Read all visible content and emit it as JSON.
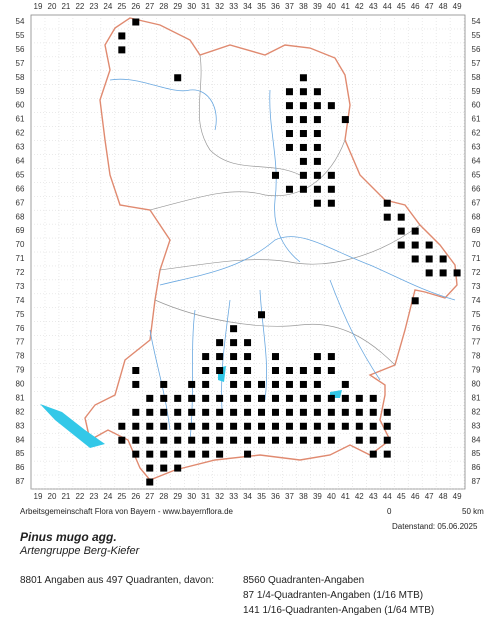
{
  "map": {
    "x_labels": [
      19,
      20,
      21,
      22,
      23,
      24,
      25,
      26,
      27,
      28,
      29,
      30,
      31,
      32,
      33,
      34,
      35,
      36,
      37,
      38,
      39,
      40,
      41,
      42,
      43,
      44,
      45,
      46,
      47,
      48,
      49
    ],
    "y_labels": [
      54,
      55,
      56,
      57,
      58,
      59,
      60,
      61,
      62,
      63,
      64,
      65,
      66,
      67,
      68,
      69,
      70,
      71,
      72,
      73,
      74,
      75,
      76,
      77,
      78,
      79,
      80,
      81,
      82,
      83,
      84,
      85,
      86,
      87
    ],
    "occurrences": [
      {
        "row": 54,
        "cols": [
          26
        ]
      },
      {
        "row": 55,
        "cols": [
          25
        ]
      },
      {
        "row": 56,
        "cols": [
          25
        ]
      },
      {
        "row": 58,
        "cols": [
          29,
          38
        ]
      },
      {
        "row": 59,
        "cols": [
          37,
          38,
          39
        ]
      },
      {
        "row": 60,
        "cols": [
          37,
          38,
          39,
          40
        ]
      },
      {
        "row": 61,
        "cols": [
          37,
          38,
          39,
          41
        ]
      },
      {
        "row": 62,
        "cols": [
          37,
          38,
          39
        ]
      },
      {
        "row": 63,
        "cols": [
          37,
          38,
          39
        ]
      },
      {
        "row": 64,
        "cols": [
          38,
          39
        ]
      },
      {
        "row": 65,
        "cols": [
          36,
          38,
          39,
          40
        ]
      },
      {
        "row": 66,
        "cols": [
          37,
          38,
          39,
          40
        ]
      },
      {
        "row": 67,
        "cols": [
          39,
          40,
          44
        ]
      },
      {
        "row": 68,
        "cols": [
          44,
          45
        ]
      },
      {
        "row": 69,
        "cols": [
          45,
          46
        ]
      },
      {
        "row": 70,
        "cols": [
          45,
          46,
          47
        ]
      },
      {
        "row": 71,
        "cols": [
          46,
          47,
          48
        ]
      },
      {
        "row": 72,
        "cols": [
          47,
          48,
          49
        ]
      },
      {
        "row": 74,
        "cols": [
          46
        ]
      },
      {
        "row": 75,
        "cols": [
          35
        ]
      },
      {
        "row": 76,
        "cols": [
          33
        ]
      },
      {
        "row": 77,
        "cols": [
          32,
          33,
          34
        ]
      },
      {
        "row": 78,
        "cols": [
          31,
          32,
          33,
          34,
          36,
          39,
          40
        ]
      },
      {
        "row": 79,
        "cols": [
          26,
          31,
          32,
          33,
          34,
          36,
          37,
          38,
          39,
          40
        ]
      },
      {
        "row": 80,
        "cols": [
          26,
          28,
          30,
          31,
          33,
          34,
          35,
          36,
          37,
          38,
          39,
          41
        ]
      },
      {
        "row": 81,
        "cols": [
          27,
          28,
          29,
          30,
          31,
          32,
          33,
          34,
          35,
          36,
          37,
          38,
          39,
          40,
          41,
          42,
          43
        ]
      },
      {
        "row": 82,
        "cols": [
          26,
          27,
          28,
          29,
          30,
          31,
          32,
          33,
          34,
          35,
          36,
          37,
          38,
          39,
          40,
          41,
          42,
          43,
          44
        ]
      },
      {
        "row": 83,
        "cols": [
          25,
          26,
          27,
          28,
          29,
          30,
          31,
          32,
          33,
          34,
          35,
          36,
          37,
          38,
          39,
          40,
          41,
          42,
          43,
          44
        ]
      },
      {
        "row": 84,
        "cols": [
          25,
          26,
          27,
          28,
          29,
          30,
          31,
          32,
          33,
          34,
          35,
          36,
          37,
          38,
          39,
          40,
          42,
          43,
          44
        ]
      },
      {
        "row": 85,
        "cols": [
          26,
          27,
          28,
          29,
          30,
          31,
          32,
          34,
          43,
          44
        ]
      },
      {
        "row": 86,
        "cols": [
          27,
          28,
          29
        ]
      },
      {
        "row": 87,
        "cols": [
          27
        ]
      }
    ]
  },
  "credit": "Arbeitsgemeinschaft Flora von Bayern - www.bayernflora.de",
  "scale": {
    "zero": "0",
    "end": "50 km"
  },
  "date": "Datenstand: 05.06.2025",
  "species": "Pinus mugo agg.",
  "group": "Artengruppe Berg-Kiefer",
  "summary": "8801 Angaben aus 497 Quadranten, davon:",
  "details": [
    "8560 Quadranten-Angaben",
    "87 1/4-Quadranten-Angaben (1/16 MTB)",
    "141 1/16-Quadranten-Angaben (1/64 MTB)"
  ]
}
